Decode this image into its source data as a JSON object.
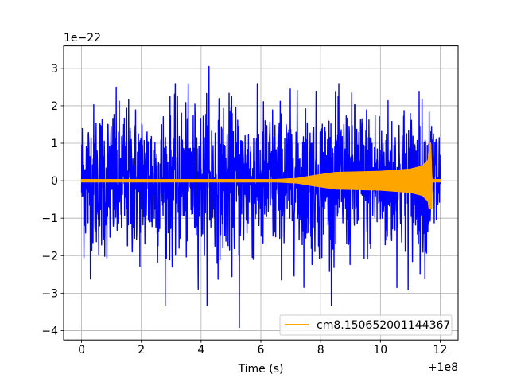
{
  "chart_data": {
    "type": "line",
    "title": "",
    "xlabel": "Time (s)",
    "ylabel": "",
    "x_offset_label": "+1e8",
    "y_scale_label": "1e−22",
    "xlim": [
      -0.6,
      12.6
    ],
    "ylim": [
      -4.25,
      3.6
    ],
    "grid": true,
    "x_ticks": [
      {
        "value": 0,
        "label": "0"
      },
      {
        "value": 2,
        "label": "2"
      },
      {
        "value": 4,
        "label": "4"
      },
      {
        "value": 6,
        "label": "6"
      },
      {
        "value": 8,
        "label": "8"
      },
      {
        "value": 10,
        "label": "10"
      },
      {
        "value": 12,
        "label": "12"
      }
    ],
    "y_ticks": [
      {
        "value": 3,
        "label": "3"
      },
      {
        "value": 2,
        "label": "2"
      },
      {
        "value": 1,
        "label": "1"
      },
      {
        "value": 0,
        "label": "0"
      },
      {
        "value": -1,
        "label": "−1"
      },
      {
        "value": -2,
        "label": "−2"
      },
      {
        "value": -3,
        "label": "−3"
      },
      {
        "value": -4,
        "label": "−4"
      }
    ],
    "legend": {
      "placement": "lower-right"
    },
    "series": [
      {
        "name": "",
        "color": "#0000ff",
        "kind": "noise",
        "x_range": [
          0,
          12
        ],
        "typical_amplitude": 2.0,
        "max": 3.05,
        "min": -3.92
      },
      {
        "name": "cm8.150652001144367",
        "color": "#ffa500",
        "kind": "chirp-envelope",
        "envelope": [
          {
            "x": 0.0,
            "y": 0.03
          },
          {
            "x": 6.5,
            "y": 0.03
          },
          {
            "x": 7.2,
            "y": 0.06
          },
          {
            "x": 7.8,
            "y": 0.14
          },
          {
            "x": 8.5,
            "y": 0.22
          },
          {
            "x": 10.0,
            "y": 0.25
          },
          {
            "x": 11.0,
            "y": 0.31
          },
          {
            "x": 11.4,
            "y": 0.39
          },
          {
            "x": 11.6,
            "y": 0.55
          },
          {
            "x": 11.68,
            "y": 1.1
          },
          {
            "x": 11.72,
            "y": 0.03
          },
          {
            "x": 12.0,
            "y": 0.03
          }
        ],
        "min_peak": -0.75
      }
    ]
  }
}
